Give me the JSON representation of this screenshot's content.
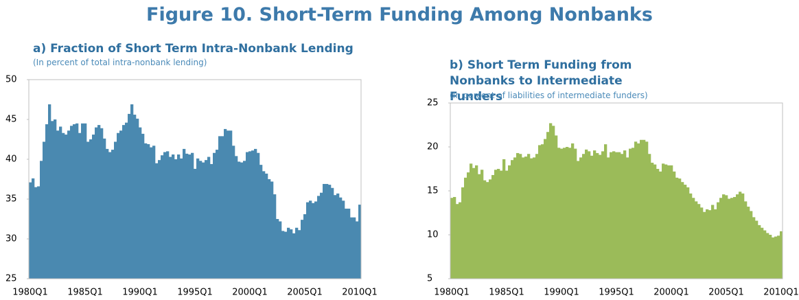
{
  "title": "Figure 10. Short-Term Funding Among Nonbanks",
  "chart_data": [
    {
      "type": "bar",
      "title": "a) Fraction of Short Term Intra-Nonbank Lending",
      "subtitle": "(In percent of total intra-nonbank lending)",
      "color": "#4a89b0",
      "categories": [
        "1980Q1",
        null,
        null,
        null,
        null,
        null,
        null,
        null,
        null,
        null,
        null,
        null,
        null,
        null,
        null,
        null,
        null,
        null,
        null,
        null,
        "1985Q1",
        null,
        null,
        null,
        null,
        null,
        null,
        null,
        null,
        null,
        null,
        null,
        null,
        null,
        null,
        null,
        null,
        null,
        null,
        null,
        "1990Q1",
        null,
        null,
        null,
        null,
        null,
        null,
        null,
        null,
        null,
        null,
        null,
        null,
        null,
        null,
        null,
        null,
        null,
        null,
        null,
        "1995Q1",
        null,
        null,
        null,
        null,
        null,
        null,
        null,
        null,
        null,
        null,
        null,
        null,
        null,
        null,
        null,
        null,
        null,
        null,
        null,
        "2000Q1",
        null,
        null,
        null,
        null,
        null,
        null,
        null,
        null,
        null,
        null,
        null,
        null,
        null,
        null,
        null,
        null,
        null,
        null,
        null,
        "2005Q1",
        null,
        null,
        null,
        null,
        null,
        null,
        null,
        null,
        null,
        null,
        null,
        null,
        null,
        null,
        null,
        null,
        null,
        null,
        null,
        "2010Q1"
      ],
      "values": [
        37.1,
        37.6,
        36.5,
        36.6,
        39.8,
        42.2,
        44.4,
        46.9,
        44.8,
        45.0,
        43.6,
        44.1,
        43.3,
        43.1,
        43.6,
        44.2,
        44.4,
        44.5,
        43.3,
        44.5,
        44.5,
        42.2,
        42.5,
        43.1,
        44.0,
        44.3,
        43.9,
        42.6,
        41.3,
        40.9,
        41.2,
        42.2,
        43.3,
        43.6,
        44.3,
        44.6,
        45.7,
        46.9,
        45.6,
        45.1,
        44.0,
        43.2,
        42.0,
        41.9,
        41.5,
        41.7,
        39.5,
        39.9,
        40.5,
        40.9,
        41.0,
        40.3,
        40.6,
        40.0,
        40.6,
        40.1,
        41.3,
        40.7,
        40.6,
        40.8,
        38.8,
        40.1,
        39.8,
        39.6,
        39.9,
        40.3,
        39.4,
        40.8,
        41.2,
        42.9,
        42.9,
        43.8,
        43.6,
        43.6,
        41.7,
        40.4,
        39.7,
        39.6,
        39.8,
        40.9,
        41.0,
        41.1,
        41.3,
        40.8,
        39.3,
        38.5,
        38.2,
        37.5,
        37.2,
        35.6,
        32.5,
        32.2,
        31.0,
        30.9,
        31.4,
        31.2,
        30.7,
        31.4,
        31.1,
        32.4,
        33.1,
        34.6,
        34.8,
        34.5,
        34.7,
        35.4,
        35.8,
        36.9,
        36.9,
        36.8,
        36.4,
        35.5,
        35.7,
        35.2,
        34.8,
        33.8,
        33.8,
        32.7,
        32.7,
        32.2,
        34.3
      ],
      "ylim": [
        25,
        50
      ],
      "yticks": [
        25,
        30,
        35,
        40,
        45,
        50
      ]
    },
    {
      "type": "bar",
      "title": "b) Short Term Funding from Nonbanks to Intermediate Funders",
      "subtitle": "(In percent of liabilities of intermediate funders)",
      "color": "#9bbb59",
      "categories": [
        "1980Q1",
        null,
        null,
        null,
        null,
        null,
        null,
        null,
        null,
        null,
        null,
        null,
        null,
        null,
        null,
        null,
        null,
        null,
        null,
        null,
        "1985Q1",
        null,
        null,
        null,
        null,
        null,
        null,
        null,
        null,
        null,
        null,
        null,
        null,
        null,
        null,
        null,
        null,
        null,
        null,
        null,
        "1990Q1",
        null,
        null,
        null,
        null,
        null,
        null,
        null,
        null,
        null,
        null,
        null,
        null,
        null,
        null,
        null,
        null,
        null,
        null,
        null,
        "1995Q1",
        null,
        null,
        null,
        null,
        null,
        null,
        null,
        null,
        null,
        null,
        null,
        null,
        null,
        null,
        null,
        null,
        null,
        null,
        null,
        "2000Q1",
        null,
        null,
        null,
        null,
        null,
        null,
        null,
        null,
        null,
        null,
        null,
        null,
        null,
        null,
        null,
        null,
        null,
        null,
        null,
        "2005Q1",
        null,
        null,
        null,
        null,
        null,
        null,
        null,
        null,
        null,
        null,
        null,
        null,
        null,
        null,
        null,
        null,
        null,
        null,
        null,
        "2010Q1"
      ],
      "values": [
        14.2,
        14.3,
        13.5,
        13.7,
        15.4,
        16.5,
        17.1,
        18.1,
        17.6,
        17.9,
        16.9,
        17.4,
        16.2,
        16.0,
        16.3,
        16.8,
        17.4,
        17.5,
        17.3,
        18.6,
        17.3,
        17.9,
        18.5,
        18.8,
        19.3,
        19.2,
        18.8,
        18.9,
        19.2,
        18.7,
        18.8,
        19.2,
        20.2,
        20.3,
        20.9,
        21.7,
        22.7,
        22.4,
        21.3,
        19.9,
        19.8,
        19.9,
        20.0,
        19.9,
        20.4,
        19.8,
        18.4,
        18.8,
        19.2,
        19.7,
        19.5,
        19.0,
        19.6,
        19.3,
        19.1,
        19.5,
        20.3,
        18.8,
        19.4,
        19.5,
        19.4,
        19.4,
        19.2,
        19.6,
        18.8,
        19.8,
        19.9,
        20.6,
        20.4,
        20.8,
        20.8,
        20.6,
        19.2,
        18.2,
        18.0,
        17.5,
        17.2,
        18.1,
        18.0,
        17.9,
        17.9,
        17.2,
        16.5,
        16.4,
        16.0,
        15.7,
        15.4,
        14.7,
        14.2,
        13.8,
        13.5,
        13.1,
        12.6,
        12.9,
        12.8,
        13.4,
        12.9,
        13.7,
        14.2,
        14.6,
        14.5,
        14.1,
        14.2,
        14.3,
        14.6,
        14.9,
        14.7,
        13.8,
        13.2,
        12.7,
        12.0,
        11.6,
        11.1,
        10.8,
        10.5,
        10.2,
        10.0,
        9.7,
        9.8,
        9.9,
        10.4
      ],
      "ylim": [
        5,
        25
      ],
      "yticks": [
        5,
        10,
        15,
        20,
        25
      ]
    }
  ]
}
